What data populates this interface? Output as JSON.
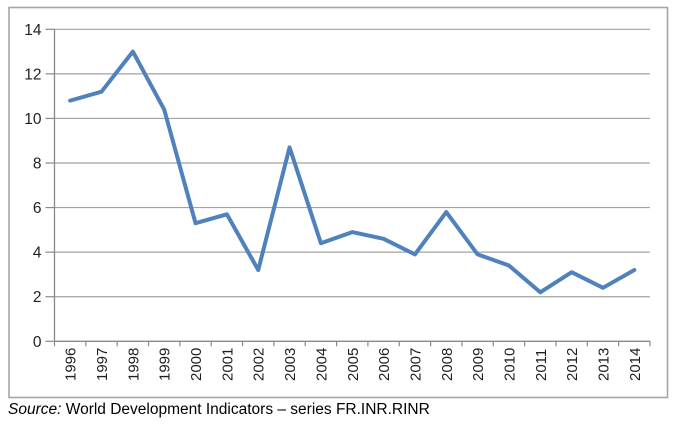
{
  "chart_data": {
    "type": "line",
    "title": "",
    "xlabel": "",
    "ylabel": "",
    "x": [
      1996,
      1997,
      1998,
      1999,
      2000,
      2001,
      2002,
      2003,
      2004,
      2005,
      2006,
      2007,
      2008,
      2009,
      2010,
      2011,
      2012,
      2013,
      2014
    ],
    "series": [
      {
        "name": "FR.INR.RINR",
        "color": "#4F81BD",
        "values": [
          10.8,
          11.2,
          13.0,
          10.4,
          5.3,
          5.7,
          3.2,
          8.7,
          4.4,
          4.9,
          4.6,
          3.9,
          5.8,
          3.9,
          3.4,
          2.2,
          3.1,
          2.4,
          3.2
        ]
      }
    ],
    "ylim": [
      0,
      14
    ],
    "yticks": [
      0,
      2,
      4,
      6,
      8,
      10,
      12,
      14
    ],
    "grid": "horizontal",
    "legend_position": "none",
    "colors": {
      "line": "#4F81BD",
      "gridline": "#A3A3A3",
      "axis": "#898989",
      "figure_border": "#A6A6A6",
      "tick_label": "#1F1F1F",
      "background": "#FFFFFF"
    }
  },
  "source_note": {
    "prefix": "Source:",
    "text": " World Development Indicators – series FR.INR.RINR"
  }
}
